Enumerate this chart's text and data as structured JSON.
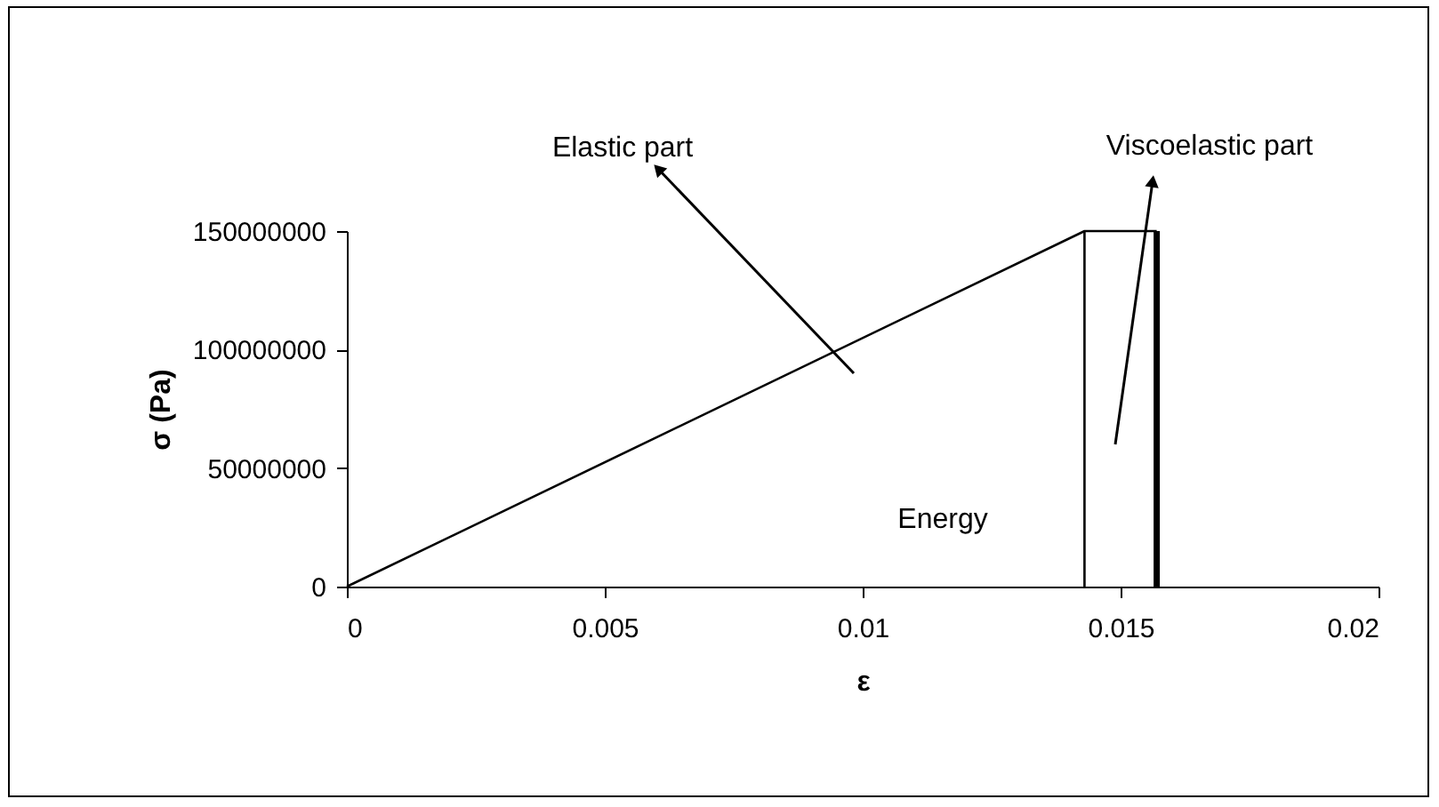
{
  "chart_data": {
    "type": "line",
    "xlabel": "ε",
    "ylabel": "σ (Pa)",
    "series": [
      {
        "color": "#000000",
        "x": [
          0,
          0.0143,
          0.0157
        ],
        "values": [
          0,
          150000000,
          150000000
        ]
      },
      {
        "color": "#000000",
        "x": [
          0.0143,
          0.0143
        ],
        "values": [
          0,
          150000000
        ]
      },
      {
        "color": "#000000",
        "x": [
          0.0157,
          0.0157
        ],
        "values": [
          0,
          150000000
        ]
      }
    ],
    "annotations": [
      "Elastic part",
      "Viscoelastic part",
      "Energy"
    ],
    "xlim": [
      0,
      0.02
    ],
    "xticks": [
      0,
      0.005,
      0.01,
      0.015,
      0.02
    ],
    "ylim": [
      0,
      150000000
    ],
    "yticks": [
      0,
      50000000,
      100000000,
      150000000
    ],
    "grid": false,
    "marker": "none",
    "line_style": "solid"
  }
}
